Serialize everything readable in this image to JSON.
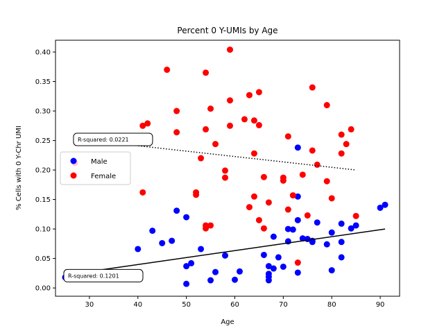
{
  "chart_data": {
    "type": "scatter",
    "title": "Percent 0 Y-UMIs by Age",
    "xlabel": "Age",
    "ylabel": "% Cells with 0 Y-Chr UMI",
    "xlim": [
      23,
      94
    ],
    "ylim": [
      -0.014,
      0.42
    ],
    "xticks": [
      30,
      40,
      50,
      60,
      70,
      80,
      90
    ],
    "yticks": [
      0.0,
      0.05,
      0.1,
      0.15,
      0.2,
      0.25,
      0.3,
      0.35,
      0.4
    ],
    "ytick_labels": [
      "0.00",
      "0.05",
      "0.10",
      "0.15",
      "0.20",
      "0.25",
      "0.30",
      "0.35",
      "0.40"
    ],
    "grid": false,
    "legend_position": "center-left",
    "series": [
      {
        "name": "Male",
        "color": "#0000ff",
        "points": [
          [
            25,
            0.018
          ],
          [
            40,
            0.066
          ],
          [
            43,
            0.097
          ],
          [
            45,
            0.076
          ],
          [
            47,
            0.08
          ],
          [
            48,
            0.131
          ],
          [
            50,
            0.12
          ],
          [
            50,
            0.037
          ],
          [
            50,
            0.007
          ],
          [
            51,
            0.042
          ],
          [
            53,
            0.066
          ],
          [
            55,
            0.013
          ],
          [
            56,
            0.027
          ],
          [
            58,
            0.055
          ],
          [
            60,
            0.014
          ],
          [
            61,
            0.028
          ],
          [
            66,
            0.056
          ],
          [
            67,
            0.037
          ],
          [
            67,
            0.024
          ],
          [
            67,
            0.019
          ],
          [
            67,
            0.013
          ],
          [
            68,
            0.033
          ],
          [
            68,
            0.087
          ],
          [
            69,
            0.052
          ],
          [
            70,
            0.036
          ],
          [
            71,
            0.1
          ],
          [
            71,
            0.079
          ],
          [
            72,
            0.099
          ],
          [
            73,
            0.115
          ],
          [
            73,
            0.026
          ],
          [
            73,
            0.155
          ],
          [
            73,
            0.238
          ],
          [
            74,
            0.084
          ],
          [
            75,
            0.083
          ],
          [
            76,
            0.078
          ],
          [
            76,
            0.08
          ],
          [
            77,
            0.111
          ],
          [
            79,
            0.074
          ],
          [
            80,
            0.094
          ],
          [
            80,
            0.03
          ],
          [
            82,
            0.052
          ],
          [
            82,
            0.109
          ],
          [
            82,
            0.078
          ],
          [
            84,
            0.101
          ],
          [
            85,
            0.106
          ],
          [
            90,
            0.136
          ],
          [
            91,
            0.141
          ]
        ],
        "fit": {
          "x": [
            25,
            91
          ],
          "y": [
            0.022,
            0.1
          ],
          "r_squared_label": "R-squared: 0.1201"
        }
      },
      {
        "name": "Female",
        "color": "#ff0000",
        "points": [
          [
            27,
            0.212
          ],
          [
            41,
            0.275
          ],
          [
            41,
            0.162
          ],
          [
            42,
            0.279
          ],
          [
            46,
            0.37
          ],
          [
            48,
            0.3
          ],
          [
            48,
            0.264
          ],
          [
            52,
            0.162
          ],
          [
            52,
            0.158
          ],
          [
            53,
            0.22
          ],
          [
            54,
            0.365
          ],
          [
            54,
            0.269
          ],
          [
            54,
            0.106
          ],
          [
            54,
            0.101
          ],
          [
            55,
            0.304
          ],
          [
            55,
            0.106
          ],
          [
            56,
            0.244
          ],
          [
            58,
            0.199
          ],
          [
            58,
            0.187
          ],
          [
            59,
            0.404
          ],
          [
            59,
            0.318
          ],
          [
            59,
            0.275
          ],
          [
            62,
            0.286
          ],
          [
            63,
            0.327
          ],
          [
            63,
            0.137
          ],
          [
            64,
            0.284
          ],
          [
            64,
            0.228
          ],
          [
            64,
            0.155
          ],
          [
            65,
            0.332
          ],
          [
            65,
            0.276
          ],
          [
            65,
            0.115
          ],
          [
            66,
            0.188
          ],
          [
            66,
            0.101
          ],
          [
            67,
            0.145
          ],
          [
            70,
            0.187
          ],
          [
            70,
            0.182
          ],
          [
            71,
            0.257
          ],
          [
            71,
            0.133
          ],
          [
            72,
            0.157
          ],
          [
            73,
            0.043
          ],
          [
            74,
            0.192
          ],
          [
            75,
            0.123
          ],
          [
            76,
            0.34
          ],
          [
            76,
            0.233
          ],
          [
            77,
            0.209
          ],
          [
            79,
            0.31
          ],
          [
            79,
            0.181
          ],
          [
            80,
            0.152
          ],
          [
            82,
            0.26
          ],
          [
            82,
            0.228
          ],
          [
            83,
            0.244
          ],
          [
            84,
            0.269
          ],
          [
            85,
            0.122
          ]
        ],
        "fit": {
          "x": [
            27,
            85
          ],
          "y": [
            0.253,
            0.2
          ],
          "r_squared_label": "R-squared: 0.0221"
        }
      }
    ]
  }
}
